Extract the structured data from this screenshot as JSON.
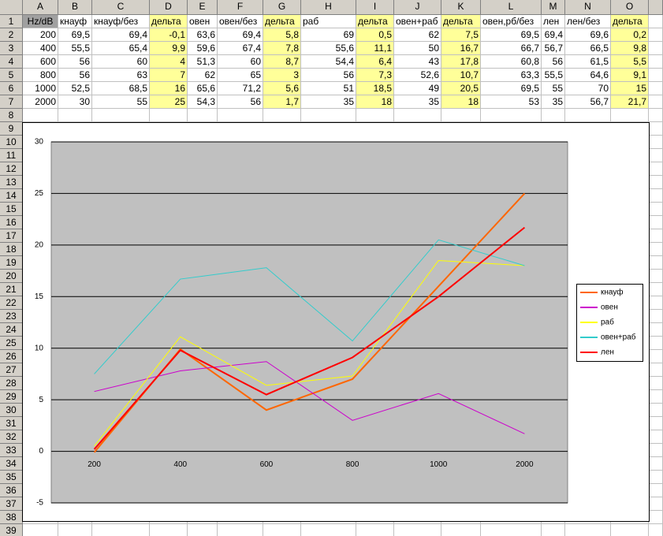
{
  "spreadsheet": {
    "columns": [
      "A",
      "B",
      "C",
      "D",
      "E",
      "F",
      "G",
      "H",
      "I",
      "J",
      "K",
      "L",
      "M",
      "N",
      "O"
    ],
    "row_numbers": [
      "1",
      "2",
      "3",
      "4",
      "5",
      "6",
      "7",
      "8",
      "9",
      "10",
      "11",
      "12",
      "13",
      "14",
      "15",
      "16",
      "17",
      "18",
      "19",
      "20",
      "21",
      "22",
      "23",
      "24",
      "25",
      "26",
      "27",
      "28",
      "29",
      "30",
      "31",
      "32",
      "33",
      "34",
      "35",
      "36",
      "37",
      "38",
      "39"
    ],
    "cells": [
      [
        "Hz/dB",
        "кнауф",
        "кнауф/без",
        "дельта",
        "овен",
        "овен/без",
        "дельта",
        "раб",
        "дельта",
        "овен+раб",
        "дельта",
        "овен,рб/без",
        "лен",
        "лен/без",
        "дельта"
      ],
      [
        "200",
        "69,5",
        "69,4",
        "-0,1",
        "63,6",
        "69,4",
        "5,8",
        "69",
        "0,5",
        "62",
        "7,5",
        "69,5",
        "69,4",
        "69,6",
        "0,2"
      ],
      [
        "400",
        "55,5",
        "65,4",
        "9,9",
        "59,6",
        "67,4",
        "7,8",
        "55,6",
        "11,1",
        "50",
        "16,7",
        "66,7",
        "56,7",
        "66,5",
        "9,8"
      ],
      [
        "600",
        "56",
        "60",
        "4",
        "51,3",
        "60",
        "8,7",
        "54,4",
        "6,4",
        "43",
        "17,8",
        "60,8",
        "56",
        "61,5",
        "5,5"
      ],
      [
        "800",
        "56",
        "63",
        "7",
        "62",
        "65",
        "3",
        "56",
        "7,3",
        "52,6",
        "10,7",
        "63,3",
        "55,5",
        "64,6",
        "9,1"
      ],
      [
        "1000",
        "52,5",
        "68,5",
        "16",
        "65,6",
        "71,2",
        "5,6",
        "51",
        "18,5",
        "49",
        "20,5",
        "69,5",
        "55",
        "70",
        "15"
      ],
      [
        "2000",
        "30",
        "55",
        "25",
        "54,3",
        "56",
        "1,7",
        "35",
        "18",
        "35",
        "18",
        "53",
        "35",
        "56,7",
        "21,7"
      ]
    ]
  },
  "chart_data": {
    "type": "line",
    "categories": [
      "200",
      "400",
      "600",
      "800",
      "1000",
      "2000"
    ],
    "series": [
      {
        "name": "кнауф",
        "color": "#ff6600",
        "values": [
          -0.1,
          9.9,
          4,
          7,
          16,
          25
        ]
      },
      {
        "name": "овен",
        "color": "#cc00cc",
        "values": [
          5.8,
          7.8,
          8.7,
          3,
          5.6,
          1.7
        ]
      },
      {
        "name": "раб",
        "color": "#ffff00",
        "values": [
          0.5,
          11.1,
          6.4,
          7.3,
          18.5,
          18
        ]
      },
      {
        "name": "овен+раб",
        "color": "#33cccc",
        "values": [
          7.5,
          16.7,
          17.8,
          10.7,
          20.5,
          18
        ]
      },
      {
        "name": "лен",
        "color": "#ff0000",
        "values": [
          0.2,
          9.8,
          5.5,
          9.1,
          15,
          21.7
        ]
      }
    ],
    "ylim": [
      -5,
      30
    ],
    "yticks": [
      -5,
      0,
      5,
      10,
      15,
      20,
      25,
      30
    ],
    "grid": true,
    "legend": "right"
  }
}
